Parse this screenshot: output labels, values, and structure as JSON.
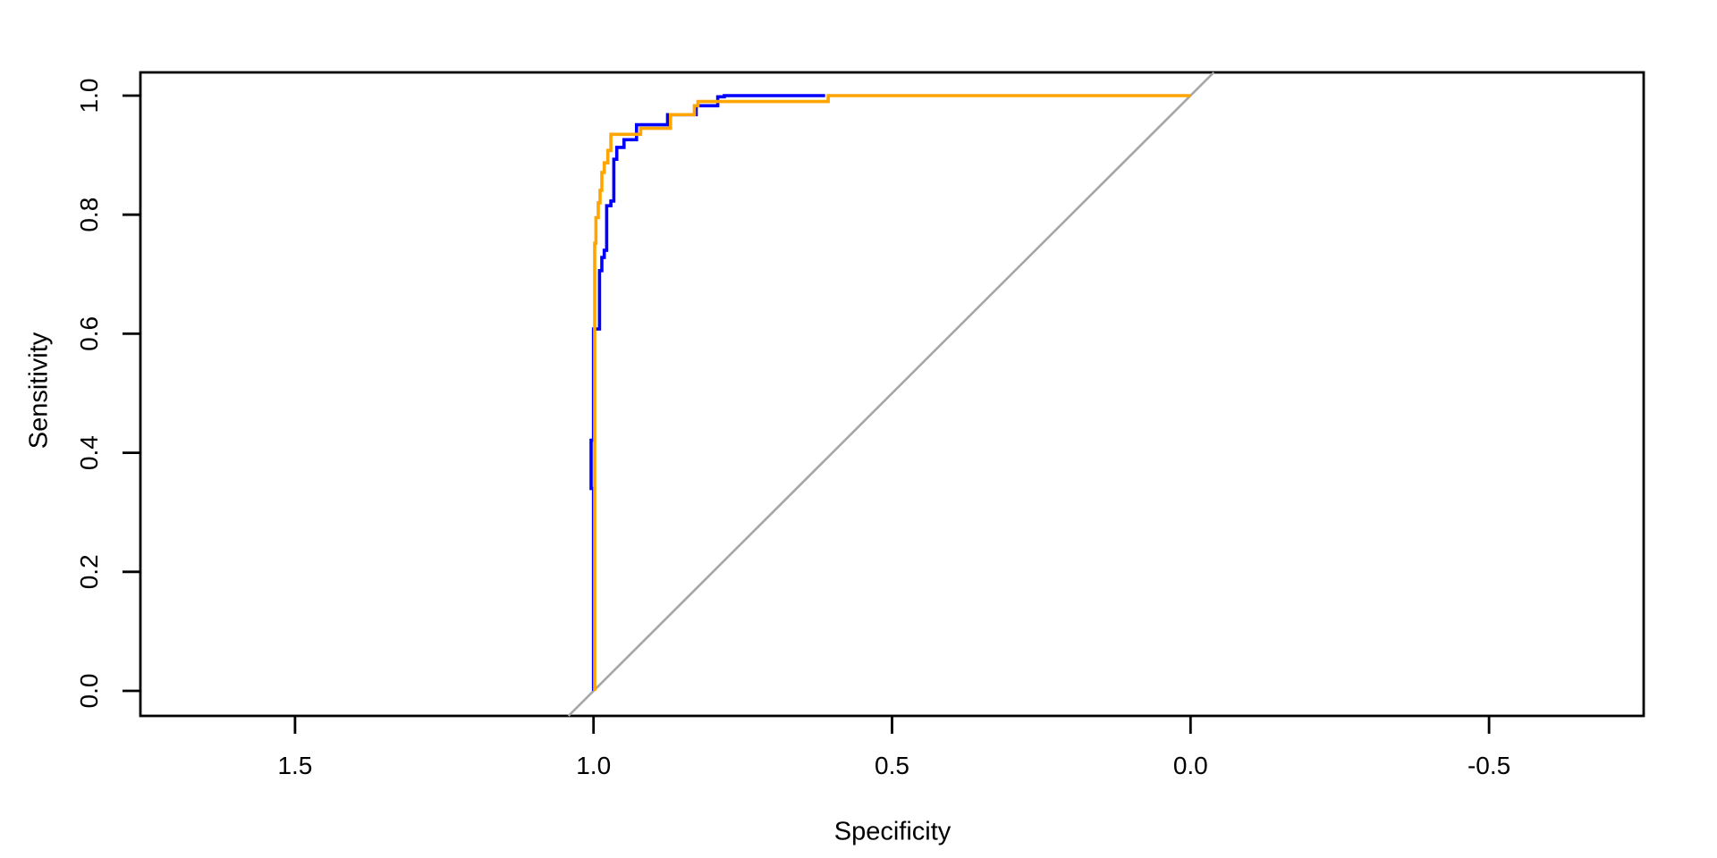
{
  "chart_data": {
    "type": "line",
    "subtype": "roc_step_curves",
    "title": "",
    "xlabel": "Specificity",
    "ylabel": "Sensitivity",
    "x_tick_values": [
      1.5,
      1.0,
      0.5,
      0.0,
      -0.5
    ],
    "x_tick_labels": [
      "1.5",
      "1.0",
      "0.5",
      "0.0",
      "-0.5"
    ],
    "y_tick_values": [
      0.0,
      0.2,
      0.4,
      0.6,
      0.8,
      1.0
    ],
    "y_tick_labels": [
      "0.0",
      "0.2",
      "0.4",
      "0.6",
      "0.8",
      "1.0"
    ],
    "xlim": [
      1.759,
      -0.759
    ],
    "ylim": [
      -0.042,
      1.039
    ],
    "x_axis_reversed": true,
    "grid": false,
    "legend_position": "none",
    "background": "#FFFFFF",
    "axis_color": "#000000",
    "series": [
      {
        "name": "roc-curve-blue",
        "color": "#0000FF",
        "points": [
          [
            1.0,
            0.0
          ],
          [
            1.0,
            0.34
          ],
          [
            1.004,
            0.34
          ],
          [
            1.004,
            0.421
          ],
          [
            1.0,
            0.421
          ],
          [
            1.0,
            0.608
          ],
          [
            0.99,
            0.608
          ],
          [
            0.99,
            0.706
          ],
          [
            0.986,
            0.706
          ],
          [
            0.986,
            0.728
          ],
          [
            0.982,
            0.728
          ],
          [
            0.982,
            0.74
          ],
          [
            0.978,
            0.74
          ],
          [
            0.978,
            0.815
          ],
          [
            0.971,
            0.815
          ],
          [
            0.971,
            0.823
          ],
          [
            0.966,
            0.823
          ],
          [
            0.966,
            0.893
          ],
          [
            0.961,
            0.893
          ],
          [
            0.961,
            0.913
          ],
          [
            0.949,
            0.913
          ],
          [
            0.949,
            0.926
          ],
          [
            0.928,
            0.926
          ],
          [
            0.928,
            0.951
          ],
          [
            0.876,
            0.951
          ],
          [
            0.876,
            0.968
          ],
          [
            0.828,
            0.968
          ],
          [
            0.828,
            0.983
          ],
          [
            0.792,
            0.983
          ],
          [
            0.792,
            0.998
          ],
          [
            0.781,
            0.998
          ],
          [
            0.781,
            1.0
          ],
          [
            0.612,
            1.0
          ]
        ]
      },
      {
        "name": "roc-curve-orange",
        "color": "#FFA500",
        "points": [
          [
            0.998,
            0.0
          ],
          [
            0.998,
            0.752
          ],
          [
            0.996,
            0.752
          ],
          [
            0.996,
            0.795
          ],
          [
            0.992,
            0.795
          ],
          [
            0.992,
            0.82
          ],
          [
            0.989,
            0.82
          ],
          [
            0.989,
            0.841
          ],
          [
            0.986,
            0.841
          ],
          [
            0.986,
            0.871
          ],
          [
            0.982,
            0.871
          ],
          [
            0.982,
            0.887
          ],
          [
            0.976,
            0.887
          ],
          [
            0.976,
            0.908
          ],
          [
            0.971,
            0.908
          ],
          [
            0.971,
            0.935
          ],
          [
            0.921,
            0.935
          ],
          [
            0.921,
            0.945
          ],
          [
            0.871,
            0.945
          ],
          [
            0.871,
            0.968
          ],
          [
            0.831,
            0.968
          ],
          [
            0.831,
            0.983
          ],
          [
            0.825,
            0.983
          ],
          [
            0.825,
            0.99
          ],
          [
            0.607,
            0.99
          ],
          [
            0.607,
            1.0
          ],
          [
            0.0,
            1.0
          ]
        ]
      }
    ],
    "reference_line": {
      "name": "chance-diagonal",
      "color": "#A6A6A6",
      "points": [
        [
          1.042,
          -0.042
        ],
        [
          -0.039,
          1.039
        ]
      ]
    }
  }
}
